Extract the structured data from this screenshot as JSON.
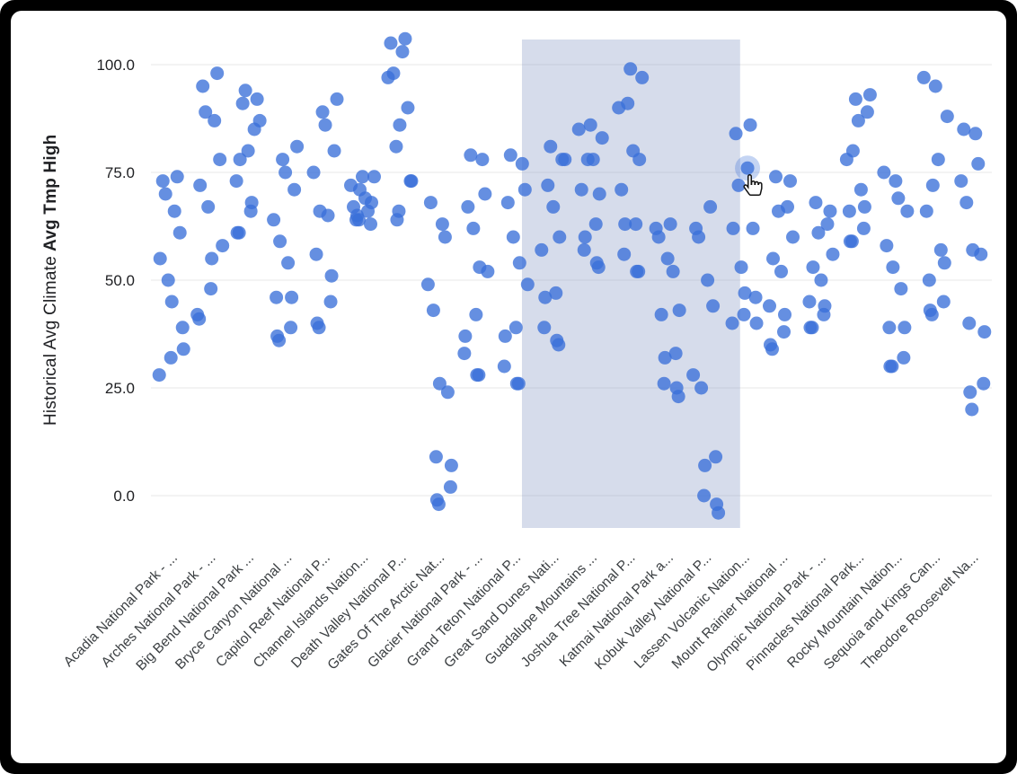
{
  "colors": {
    "frame_background": "#000000",
    "card_background": "#ffffff",
    "grid_color": "#e7e7e7",
    "axis_text_color": "#202124",
    "category_text_color": "#3c4043",
    "dot_color": "#3a6fd8",
    "band_color": "#8193c2"
  },
  "cursor_icon": "hand-pointer-icon",
  "chart_data": {
    "type": "scatter",
    "title": "",
    "xlabel": "",
    "ylabel_normal": "Historical Avg Climate ",
    "ylabel_bold": "Avg Tmp High",
    "yticks": [
      "100.0",
      "75.0",
      "50.0",
      "25.0",
      "0.0"
    ],
    "ytick_values": [
      100,
      75,
      50,
      25,
      0
    ],
    "ylim": [
      -8,
      107
    ],
    "grid": true,
    "legend": "none",
    "dot_opacity": 0.78,
    "dot_radius": 7.5,
    "band_opacity": 0.32,
    "categories": [
      "Acadia National Park - ...",
      "Arches National Park - ...",
      "Big Bend National Park ...",
      "Bryce Canyon National ...",
      "Capitol Reef National P...",
      "Channel Islands Nation...",
      "Death Valley National P...",
      "Gates Of The Arctic Nat...",
      "Glacier National Park - ...",
      "Grand Teton National P...",
      "Great Sand Dunes Nati...",
      "Guadalupe Mountains ...",
      "Joshua Tree National P...",
      "Katmai National Park a...",
      "Kobuk Valley National P...",
      "Lassen Volcanic Nation...",
      "Mount Rainier National ...",
      "Olympic National Park - ...",
      "Pinnacles National Park...",
      "Rocky Mountain Nation...",
      "Sequoia and Kings Can...",
      "Theodore Roosevelt Na..."
    ],
    "values": [
      [
        28,
        32,
        39,
        50,
        61,
        70,
        74,
        73,
        66,
        55,
        45,
        34
      ],
      [
        41,
        48,
        58,
        67,
        78,
        89,
        98,
        95,
        87,
        72,
        55,
        42
      ],
      [
        61,
        66,
        73,
        80,
        87,
        94,
        92,
        91,
        85,
        78,
        68,
        61
      ],
      [
        36,
        39,
        46,
        54,
        64,
        75,
        81,
        78,
        71,
        59,
        46,
        37
      ],
      [
        39,
        45,
        56,
        65,
        75,
        86,
        92,
        89,
        80,
        66,
        51,
        40
      ],
      [
        64,
        63,
        64,
        66,
        67,
        69,
        72,
        74,
        74,
        71,
        68,
        65
      ],
      [
        66,
        73,
        81,
        90,
        98,
        106,
        105,
        103,
        97,
        86,
        73,
        64
      ],
      [
        -2,
        2,
        9,
        24,
        43,
        60,
        68,
        63,
        49,
        26,
        7,
        -1
      ],
      [
        28,
        33,
        42,
        52,
        62,
        70,
        79,
        78,
        67,
        53,
        37,
        28
      ],
      [
        26,
        30,
        39,
        49,
        60,
        71,
        79,
        77,
        68,
        54,
        37,
        26
      ],
      [
        35,
        39,
        47,
        57,
        67,
        78,
        81,
        78,
        72,
        60,
        46,
        36
      ],
      [
        53,
        57,
        63,
        71,
        78,
        85,
        86,
        83,
        78,
        70,
        60,
        54
      ],
      [
        52,
        56,
        63,
        71,
        80,
        90,
        99,
        97,
        91,
        78,
        63,
        52
      ],
      [
        23,
        26,
        33,
        42,
        52,
        60,
        63,
        62,
        55,
        43,
        32,
        25
      ],
      [
        -4,
        0,
        9,
        25,
        44,
        60,
        67,
        62,
        50,
        28,
        7,
        -2
      ],
      [
        40,
        42,
        46,
        53,
        62,
        72,
        86,
        84,
        76,
        62,
        47,
        40
      ],
      [
        34,
        38,
        44,
        52,
        60,
        66,
        73,
        74,
        67,
        55,
        42,
        35
      ],
      [
        39,
        42,
        45,
        50,
        56,
        61,
        66,
        68,
        63,
        53,
        44,
        39
      ],
      [
        59,
        62,
        66,
        71,
        78,
        87,
        93,
        92,
        89,
        80,
        67,
        59
      ],
      [
        30,
        32,
        39,
        48,
        58,
        69,
        75,
        73,
        66,
        53,
        39,
        30
      ],
      [
        42,
        45,
        50,
        57,
        66,
        78,
        97,
        95,
        88,
        72,
        54,
        43
      ],
      [
        20,
        26,
        40,
        56,
        68,
        77,
        85,
        84,
        73,
        57,
        38,
        24
      ]
    ],
    "selection_band": {
      "left_frac": 0.44,
      "right_frac": 0.7
    },
    "highlight": {
      "category_index": 15,
      "point_index": 8,
      "value": 76
    }
  }
}
